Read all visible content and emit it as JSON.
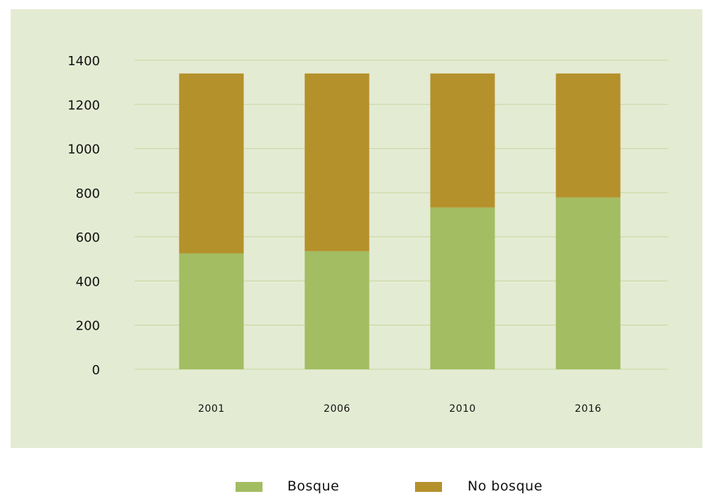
{
  "chart_data": {
    "type": "bar",
    "stacked": true,
    "categories": [
      "2001",
      "2006",
      "2010",
      "2016"
    ],
    "series": [
      {
        "name": "Bosque",
        "color": "#a3bd62",
        "values": [
          525,
          535,
          733,
          778
        ]
      },
      {
        "name": "No bosque",
        "color": "#b5912c",
        "values": [
          815,
          805,
          607,
          562
        ]
      }
    ],
    "title": "",
    "xlabel": "",
    "ylabel": "",
    "ylim": [
      0,
      1400
    ],
    "yticks": [
      "0",
      "200",
      "400",
      "600",
      "800",
      "1000",
      "1200",
      "1400"
    ],
    "grid": true,
    "gridline_color": "#c6d59e",
    "legend_position": "bottom"
  }
}
